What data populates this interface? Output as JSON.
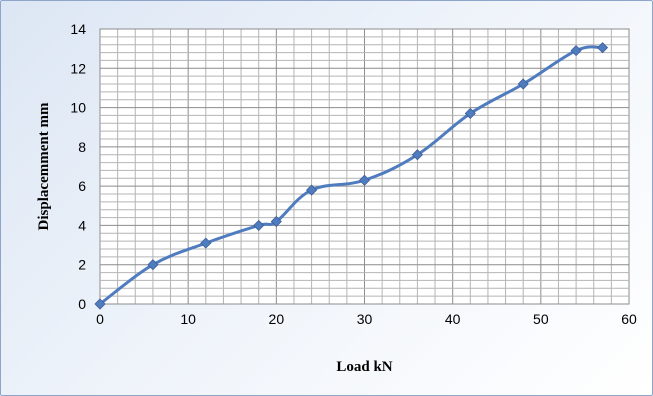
{
  "chart_data": {
    "type": "line",
    "title": "",
    "xlabel": "Load kN",
    "ylabel": "Displacemment mm",
    "xlim": [
      0,
      60
    ],
    "ylim": [
      0,
      14
    ],
    "x_ticks": [
      0,
      10,
      20,
      30,
      40,
      50,
      60
    ],
    "y_ticks": [
      0,
      2,
      4,
      6,
      8,
      10,
      12,
      14
    ],
    "grid": true,
    "smooth": true,
    "series": [
      {
        "color": "#4f7bbf",
        "marker": "diamond",
        "points": [
          {
            "x": 0,
            "y": 0
          },
          {
            "x": 6,
            "y": 2.0
          },
          {
            "x": 12,
            "y": 3.1
          },
          {
            "x": 18,
            "y": 4.0
          },
          {
            "x": 20,
            "y": 4.2
          },
          {
            "x": 24,
            "y": 5.8
          },
          {
            "x": 30,
            "y": 6.3
          },
          {
            "x": 36,
            "y": 7.6
          },
          {
            "x": 42,
            "y": 9.7
          },
          {
            "x": 48,
            "y": 11.2
          },
          {
            "x": 54,
            "y": 12.9
          },
          {
            "x": 57,
            "y": 13.05
          }
        ]
      }
    ]
  }
}
